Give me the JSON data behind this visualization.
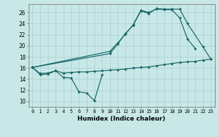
{
  "xlabel": "Humidex (Indice chaleur)",
  "background_color": "#c8e8e8",
  "grid_color": "#b0d4d4",
  "line_color": "#1a6666",
  "xlim": [
    -0.5,
    23.5
  ],
  "ylim": [
    9,
    27.5
  ],
  "xticks": [
    0,
    1,
    2,
    3,
    4,
    5,
    6,
    7,
    8,
    9,
    10,
    11,
    12,
    13,
    14,
    15,
    16,
    17,
    18,
    19,
    20,
    21,
    22,
    23
  ],
  "yticks": [
    10,
    12,
    14,
    16,
    18,
    20,
    22,
    24,
    26
  ],
  "series1_x": [
    0,
    1,
    2,
    3,
    4,
    5,
    6,
    7,
    8,
    9
  ],
  "series1_y": [
    16.1,
    14.8,
    14.9,
    15.5,
    14.3,
    14.2,
    11.7,
    11.5,
    10.1,
    14.8
  ],
  "series2_x": [
    0,
    1,
    2,
    3,
    4,
    5,
    6,
    7,
    8,
    9,
    10,
    11,
    12,
    13,
    14,
    15,
    16,
    17,
    18,
    19,
    20,
    21,
    22,
    23
  ],
  "series2_y": [
    16.1,
    15.0,
    15.1,
    15.5,
    15.1,
    15.2,
    15.3,
    15.3,
    15.4,
    15.5,
    15.6,
    15.7,
    15.8,
    16.0,
    16.1,
    16.2,
    16.4,
    16.6,
    16.8,
    17.0,
    17.1,
    17.2,
    17.4,
    17.6
  ],
  "series3_x": [
    0,
    10,
    11,
    12,
    13,
    14,
    15,
    16,
    17,
    18,
    19,
    20,
    21
  ],
  "series3_y": [
    16.1,
    19.0,
    20.5,
    22.1,
    23.8,
    26.4,
    26.0,
    26.6,
    26.5,
    26.5,
    25.0,
    21.2,
    19.5
  ],
  "series4_x": [
    0,
    10,
    11,
    12,
    13,
    14,
    15,
    16,
    17,
    18,
    19,
    20,
    22,
    23
  ],
  "series4_y": [
    16.1,
    18.6,
    20.3,
    22.2,
    23.7,
    26.3,
    25.8,
    26.7,
    26.6,
    26.6,
    26.6,
    24.0,
    19.8,
    17.6
  ]
}
